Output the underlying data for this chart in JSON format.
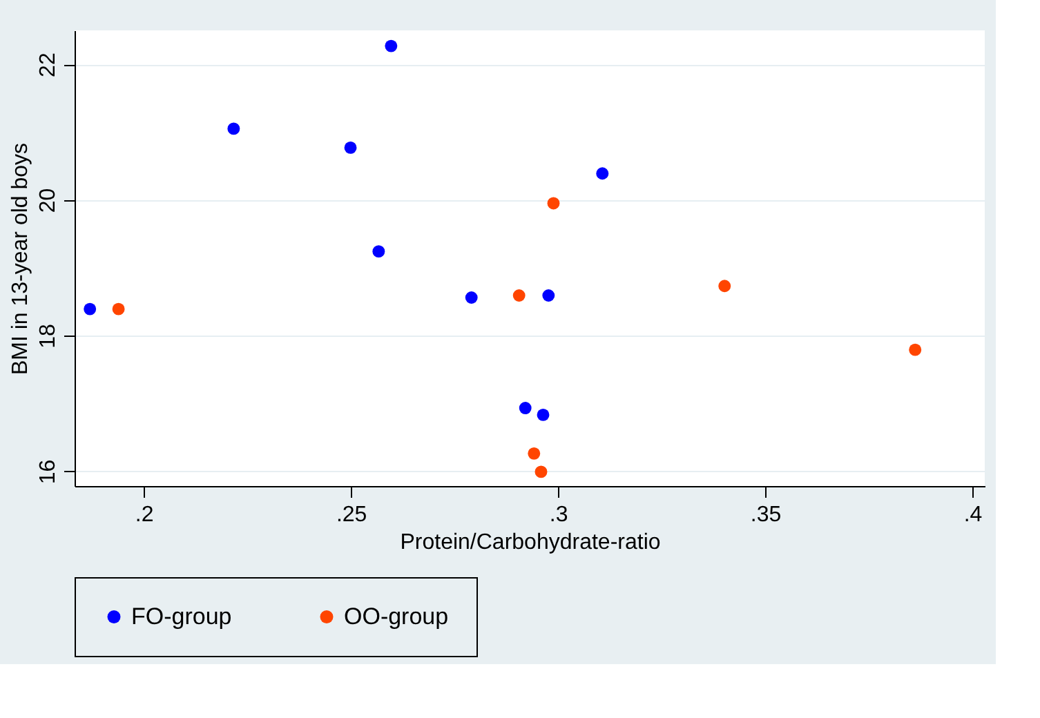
{
  "chart_data": {
    "type": "scatter",
    "xlabel": "Protein/Carbohydrate-ratio",
    "ylabel": "BMI in 13-year old boys",
    "xlim": [
      0.1833,
      0.403
    ],
    "xticks": [
      {
        "value": 0.2,
        "label": ".2"
      },
      {
        "value": 0.25,
        "label": ".25"
      },
      {
        "value": 0.3,
        "label": ".3"
      },
      {
        "value": 0.35,
        "label": ".35"
      },
      {
        "value": 0.4,
        "label": ".4"
      }
    ],
    "ylim": [
      15.78,
      22.5
    ],
    "yticks": [
      16,
      18,
      20,
      22
    ],
    "grid": "y",
    "legend": "bottom",
    "marker": "circle",
    "series": [
      {
        "name": "FO-group",
        "color": "#0000ff",
        "x": [
          0.187,
          0.2217,
          0.2499,
          0.2597,
          0.2567,
          0.2791,
          0.2977,
          0.2921,
          0.2964,
          0.3107
        ],
        "values": [
          18.39,
          21.05,
          20.77,
          22.27,
          19.24,
          18.56,
          18.59,
          16.93,
          16.83,
          20.39
        ]
      },
      {
        "name": "OO-group",
        "color": "#ff4500",
        "x": [
          0.1939,
          0.2989,
          0.2906,
          0.2942,
          0.2959,
          0.3402,
          0.3862
        ],
        "values": [
          18.39,
          19.95,
          18.59,
          16.26,
          15.99,
          18.73,
          17.79
        ]
      }
    ]
  }
}
